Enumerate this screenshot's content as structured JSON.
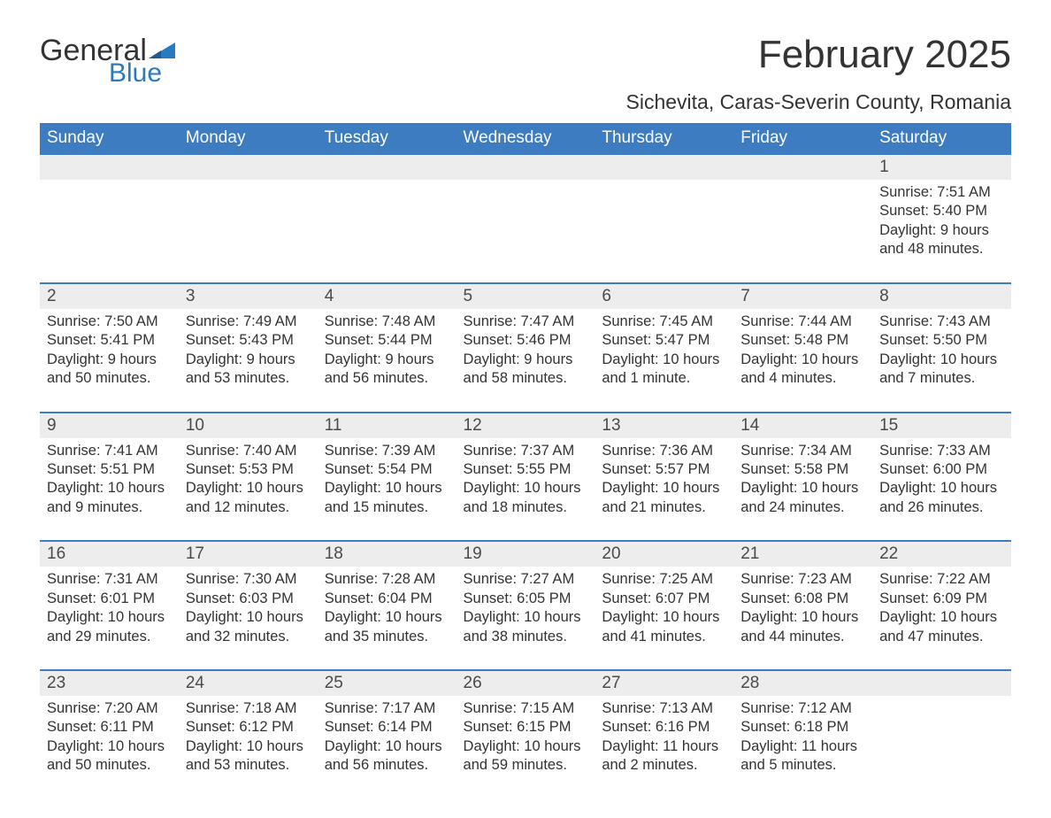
{
  "logo": {
    "general": "General",
    "blue": "Blue"
  },
  "title": "February 2025",
  "location": "Sichevita, Caras-Severin County, Romania",
  "colors": {
    "header_bg": "#3d7cc0",
    "header_text": "#ffffff",
    "daynum_bg": "#ededed",
    "daynum_border": "#3d7cc0",
    "body_text": "#333333",
    "logo_blue": "#2a7ac0",
    "page_bg": "#ffffff"
  },
  "typography": {
    "title_fontsize": 44,
    "location_fontsize": 23,
    "dayheader_fontsize": 19,
    "daynum_fontsize": 19,
    "cell_fontsize": 16.5
  },
  "day_headers": [
    "Sunday",
    "Monday",
    "Tuesday",
    "Wednesday",
    "Thursday",
    "Friday",
    "Saturday"
  ],
  "weeks": [
    {
      "nums": [
        "",
        "",
        "",
        "",
        "",
        "",
        "1"
      ],
      "cells": [
        "",
        "",
        "",
        "",
        "",
        "",
        "Sunrise: 7:51 AM\nSunset: 5:40 PM\nDaylight: 9 hours and 48 minutes."
      ]
    },
    {
      "nums": [
        "2",
        "3",
        "4",
        "5",
        "6",
        "7",
        "8"
      ],
      "cells": [
        "Sunrise: 7:50 AM\nSunset: 5:41 PM\nDaylight: 9 hours and 50 minutes.",
        "Sunrise: 7:49 AM\nSunset: 5:43 PM\nDaylight: 9 hours and 53 minutes.",
        "Sunrise: 7:48 AM\nSunset: 5:44 PM\nDaylight: 9 hours and 56 minutes.",
        "Sunrise: 7:47 AM\nSunset: 5:46 PM\nDaylight: 9 hours and 58 minutes.",
        "Sunrise: 7:45 AM\nSunset: 5:47 PM\nDaylight: 10 hours and 1 minute.",
        "Sunrise: 7:44 AM\nSunset: 5:48 PM\nDaylight: 10 hours and 4 minutes.",
        "Sunrise: 7:43 AM\nSunset: 5:50 PM\nDaylight: 10 hours and 7 minutes."
      ]
    },
    {
      "nums": [
        "9",
        "10",
        "11",
        "12",
        "13",
        "14",
        "15"
      ],
      "cells": [
        "Sunrise: 7:41 AM\nSunset: 5:51 PM\nDaylight: 10 hours and 9 minutes.",
        "Sunrise: 7:40 AM\nSunset: 5:53 PM\nDaylight: 10 hours and 12 minutes.",
        "Sunrise: 7:39 AM\nSunset: 5:54 PM\nDaylight: 10 hours and 15 minutes.",
        "Sunrise: 7:37 AM\nSunset: 5:55 PM\nDaylight: 10 hours and 18 minutes.",
        "Sunrise: 7:36 AM\nSunset: 5:57 PM\nDaylight: 10 hours and 21 minutes.",
        "Sunrise: 7:34 AM\nSunset: 5:58 PM\nDaylight: 10 hours and 24 minutes.",
        "Sunrise: 7:33 AM\nSunset: 6:00 PM\nDaylight: 10 hours and 26 minutes."
      ]
    },
    {
      "nums": [
        "16",
        "17",
        "18",
        "19",
        "20",
        "21",
        "22"
      ],
      "cells": [
        "Sunrise: 7:31 AM\nSunset: 6:01 PM\nDaylight: 10 hours and 29 minutes.",
        "Sunrise: 7:30 AM\nSunset: 6:03 PM\nDaylight: 10 hours and 32 minutes.",
        "Sunrise: 7:28 AM\nSunset: 6:04 PM\nDaylight: 10 hours and 35 minutes.",
        "Sunrise: 7:27 AM\nSunset: 6:05 PM\nDaylight: 10 hours and 38 minutes.",
        "Sunrise: 7:25 AM\nSunset: 6:07 PM\nDaylight: 10 hours and 41 minutes.",
        "Sunrise: 7:23 AM\nSunset: 6:08 PM\nDaylight: 10 hours and 44 minutes.",
        "Sunrise: 7:22 AM\nSunset: 6:09 PM\nDaylight: 10 hours and 47 minutes."
      ]
    },
    {
      "nums": [
        "23",
        "24",
        "25",
        "26",
        "27",
        "28",
        ""
      ],
      "cells": [
        "Sunrise: 7:20 AM\nSunset: 6:11 PM\nDaylight: 10 hours and 50 minutes.",
        "Sunrise: 7:18 AM\nSunset: 6:12 PM\nDaylight: 10 hours and 53 minutes.",
        "Sunrise: 7:17 AM\nSunset: 6:14 PM\nDaylight: 10 hours and 56 minutes.",
        "Sunrise: 7:15 AM\nSunset: 6:15 PM\nDaylight: 10 hours and 59 minutes.",
        "Sunrise: 7:13 AM\nSunset: 6:16 PM\nDaylight: 11 hours and 2 minutes.",
        "Sunrise: 7:12 AM\nSunset: 6:18 PM\nDaylight: 11 hours and 5 minutes.",
        ""
      ]
    }
  ]
}
